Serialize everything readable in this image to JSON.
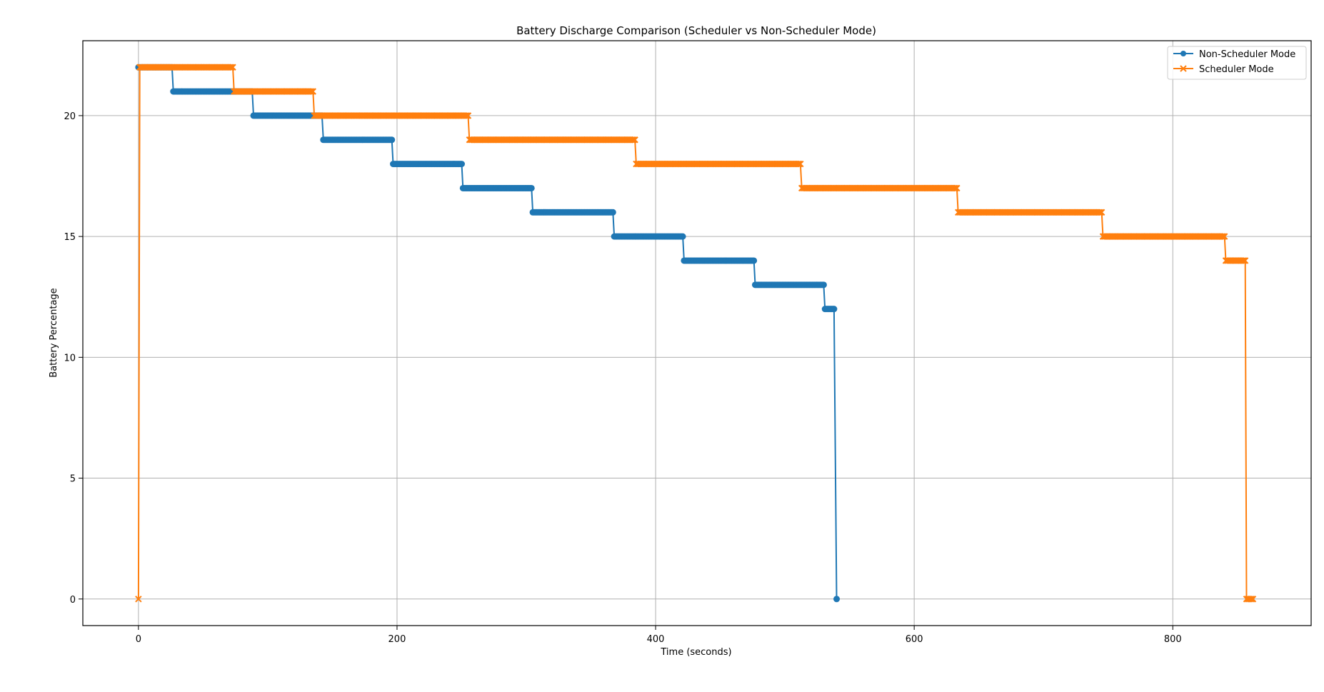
{
  "chart_data": {
    "type": "line",
    "title": "Battery Discharge Comparison (Scheduler vs Non-Scheduler Mode)",
    "xlabel": "Time (seconds)",
    "ylabel": "Battery Percentage",
    "xlim": [
      -43,
      907
    ],
    "ylim": [
      -1.1,
      23.1
    ],
    "xticks": [
      0,
      200,
      400,
      600,
      800
    ],
    "yticks": [
      0,
      5,
      10,
      15,
      20
    ],
    "grid": true,
    "legend_position": "top-right",
    "series": [
      {
        "name": "Non-Scheduler Mode",
        "color": "#1f77b4",
        "marker": "circle",
        "points": [
          [
            0,
            22
          ],
          [
            26,
            22
          ],
          [
            27,
            21
          ],
          [
            88,
            21
          ],
          [
            89,
            20
          ],
          [
            142,
            20
          ],
          [
            143,
            19
          ],
          [
            196,
            19
          ],
          [
            197,
            18
          ],
          [
            250,
            18
          ],
          [
            251,
            17
          ],
          [
            304,
            17
          ],
          [
            305,
            16
          ],
          [
            367,
            16
          ],
          [
            368,
            15
          ],
          [
            421,
            15
          ],
          [
            422,
            14
          ],
          [
            476,
            14
          ],
          [
            477,
            13
          ],
          [
            530,
            13
          ],
          [
            531,
            12
          ],
          [
            538,
            12
          ],
          [
            540,
            0
          ]
        ]
      },
      {
        "name": "Scheduler Mode",
        "color": "#ff7f0e",
        "marker": "x",
        "points": [
          [
            0,
            0
          ],
          [
            1,
            22
          ],
          [
            73,
            22
          ],
          [
            74,
            21
          ],
          [
            135,
            21
          ],
          [
            136,
            20
          ],
          [
            255,
            20
          ],
          [
            256,
            19
          ],
          [
            384,
            19
          ],
          [
            385,
            18
          ],
          [
            512,
            18
          ],
          [
            513,
            17
          ],
          [
            633,
            17
          ],
          [
            634,
            16
          ],
          [
            745,
            16
          ],
          [
            746,
            15
          ],
          [
            840,
            15
          ],
          [
            841,
            14
          ],
          [
            856,
            14
          ],
          [
            857,
            0
          ],
          [
            862,
            0
          ]
        ]
      }
    ]
  }
}
